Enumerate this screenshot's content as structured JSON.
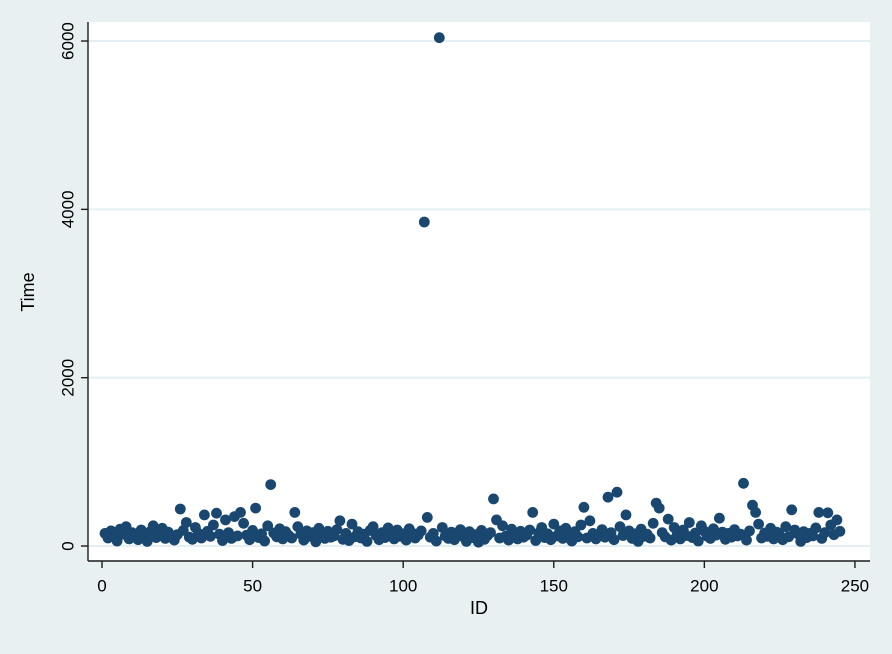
{
  "chart_data": {
    "type": "scatter",
    "title": "",
    "xlabel": "ID",
    "ylabel": "Time",
    "xlim": [
      -4.65,
      255.0
    ],
    "ylim": [
      -178,
      6226
    ],
    "xticks": [
      0,
      50,
      100,
      150,
      200,
      250
    ],
    "yticks": [
      0,
      2000,
      4000,
      6000
    ],
    "grid": "horizontal-y-only",
    "legend": "none",
    "colors": {
      "marker": "#1a476f",
      "figure_background": "#e8f0f2",
      "plot_background": "#ffffff",
      "gridline": "#e3eff2",
      "axis": "#1c1c1c",
      "text": "#000000"
    },
    "marker": {
      "shape": "circle",
      "radius_px": 5.4
    },
    "points": {
      "id_start": 1,
      "time_by_id": [
        150,
        95,
        180,
        120,
        60,
        200,
        140,
        230,
        85,
        160,
        110,
        75,
        190,
        130,
        55,
        170,
        240,
        100,
        145,
        210,
        90,
        165,
        125,
        70,
        135,
        440,
        185,
        280,
        105,
        80,
        220,
        150,
        95,
        370,
        175,
        115,
        250,
        390,
        140,
        65,
        310,
        160,
        90,
        350,
        120,
        400,
        270,
        130,
        75,
        185,
        450,
        100,
        145,
        60,
        240,
        730,
        155,
        110,
        205,
        85,
        170,
        125,
        95,
        400,
        230,
        140,
        70,
        180,
        115,
        160,
        50,
        210,
        135,
        90,
        175,
        105,
        120,
        195,
        300,
        80,
        150,
        65,
        260,
        110,
        170,
        95,
        140,
        55,
        185,
        230,
        125,
        75,
        160,
        100,
        215,
        135,
        85,
        190,
        115,
        145,
        70,
        205,
        155,
        95,
        130,
        180,
        3850,
        340,
        105,
        150,
        60,
        6040,
        220,
        120,
        90,
        165,
        75,
        140,
        195,
        110,
        55,
        170,
        100,
        135,
        45,
        185,
        80,
        125,
        160,
        560,
        310,
        95,
        240,
        115,
        70,
        200,
        145,
        85,
        175,
        105,
        130,
        190,
        400,
        65,
        155,
        220,
        100,
        145,
        75,
        260,
        120,
        180,
        90,
        210,
        140,
        60,
        170,
        110,
        250,
        460,
        95,
        300,
        150,
        85,
        130,
        195,
        105,
        580,
        160,
        75,
        640,
        230,
        125,
        370,
        180,
        90,
        145,
        55,
        200,
        115,
        140,
        95,
        270,
        510,
        450,
        160,
        110,
        320,
        70,
        220,
        135,
        85,
        190,
        125,
        280,
        100,
        155,
        60,
        240,
        175,
        115,
        90,
        205,
        130,
        330,
        165,
        80,
        150,
        105,
        195,
        120,
        140,
        745,
        70,
        180,
        485,
        400,
        260,
        95,
        155,
        115,
        210,
        85,
        165,
        130,
        75,
        230,
        110,
        430,
        190,
        145,
        55,
        170,
        100,
        150,
        120,
        215,
        400,
        90,
        160,
        395,
        250,
        135,
        310,
        175
      ]
    }
  }
}
